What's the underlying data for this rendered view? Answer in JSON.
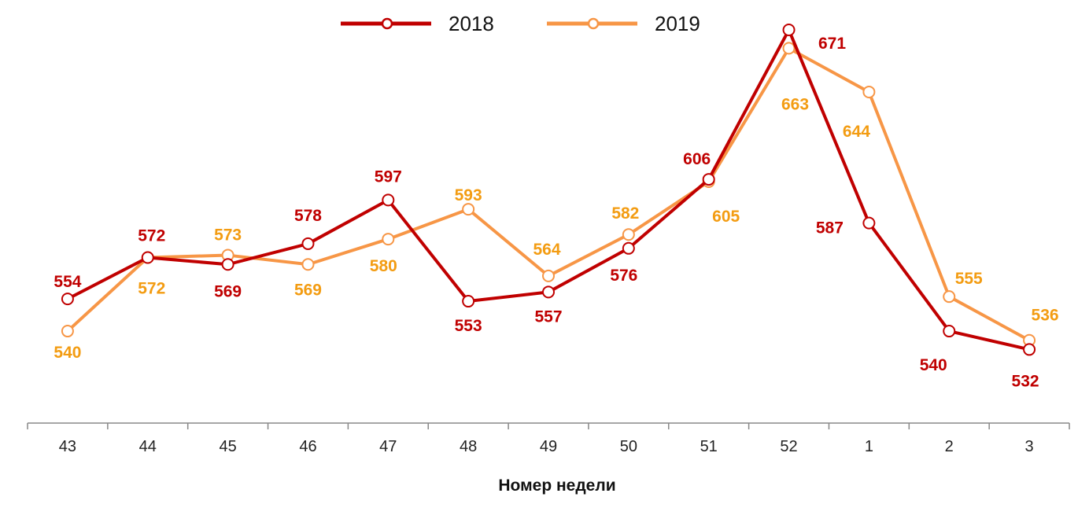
{
  "chart_data": {
    "type": "line",
    "title": "",
    "xlabel": "Номер недели",
    "ylabel": "",
    "categories": [
      "43",
      "44",
      "45",
      "46",
      "47",
      "48",
      "49",
      "50",
      "51",
      "52",
      "1",
      "2",
      "3"
    ],
    "ylim": [
      500,
      684
    ],
    "grid": false,
    "legend_position": "top-center",
    "series": [
      {
        "name": "2018",
        "color": "#C00000",
        "label_color": "#C00000",
        "values": [
          554,
          572,
          569,
          578,
          597,
          553,
          557,
          576,
          606,
          671,
          587,
          540,
          532
        ]
      },
      {
        "name": "2019",
        "color": "#F79646",
        "label_color": "#F39C12",
        "values": [
          540,
          572,
          573,
          569,
          580,
          593,
          564,
          582,
          605,
          663,
          644,
          555,
          536
        ]
      }
    ]
  }
}
